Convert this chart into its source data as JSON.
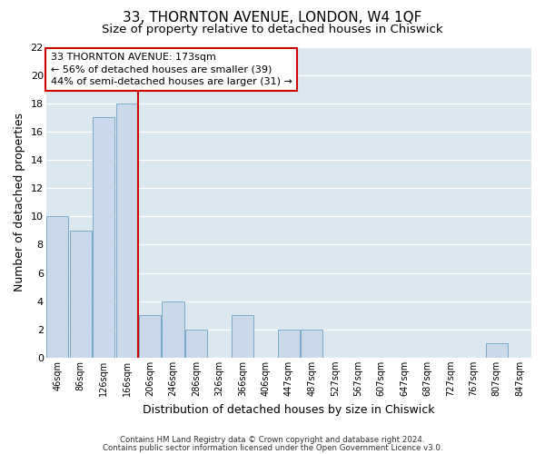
{
  "title": "33, THORNTON AVENUE, LONDON, W4 1QF",
  "subtitle": "Size of property relative to detached houses in Chiswick",
  "xlabel": "Distribution of detached houses by size in Chiswick",
  "ylabel": "Number of detached properties",
  "bar_labels": [
    "46sqm",
    "86sqm",
    "126sqm",
    "166sqm",
    "206sqm",
    "246sqm",
    "286sqm",
    "326sqm",
    "366sqm",
    "406sqm",
    "447sqm",
    "487sqm",
    "527sqm",
    "567sqm",
    "607sqm",
    "647sqm",
    "687sqm",
    "727sqm",
    "767sqm",
    "807sqm",
    "847sqm"
  ],
  "bar_values": [
    10,
    9,
    17,
    18,
    3,
    4,
    2,
    0,
    3,
    0,
    2,
    2,
    0,
    0,
    0,
    0,
    0,
    0,
    0,
    1,
    0
  ],
  "bar_color": "#c9d9ea",
  "bar_edge_color": "#7aaac8",
  "ylim": [
    0,
    22
  ],
  "yticks": [
    0,
    2,
    4,
    6,
    8,
    10,
    12,
    14,
    16,
    18,
    20,
    22
  ],
  "red_line_x": 3.5,
  "annotation_line1": "33 THORNTON AVENUE: 173sqm",
  "annotation_line2": "← 56% of detached houses are smaller (39)",
  "annotation_line3": "44% of semi-detached houses are larger (31) →",
  "annotation_box_color": "#ffffff",
  "annotation_box_edge": "#cc0000",
  "red_line_color": "#cc0000",
  "footer_line1": "Contains HM Land Registry data © Crown copyright and database right 2024.",
  "footer_line2": "Contains public sector information licensed under the Open Government Licence v3.0.",
  "bg_color": "#dce8f0",
  "grid_color": "#ffffff",
  "title_fontsize": 11,
  "subtitle_fontsize": 9.5,
  "ylabel_fontsize": 9,
  "xlabel_fontsize": 9
}
